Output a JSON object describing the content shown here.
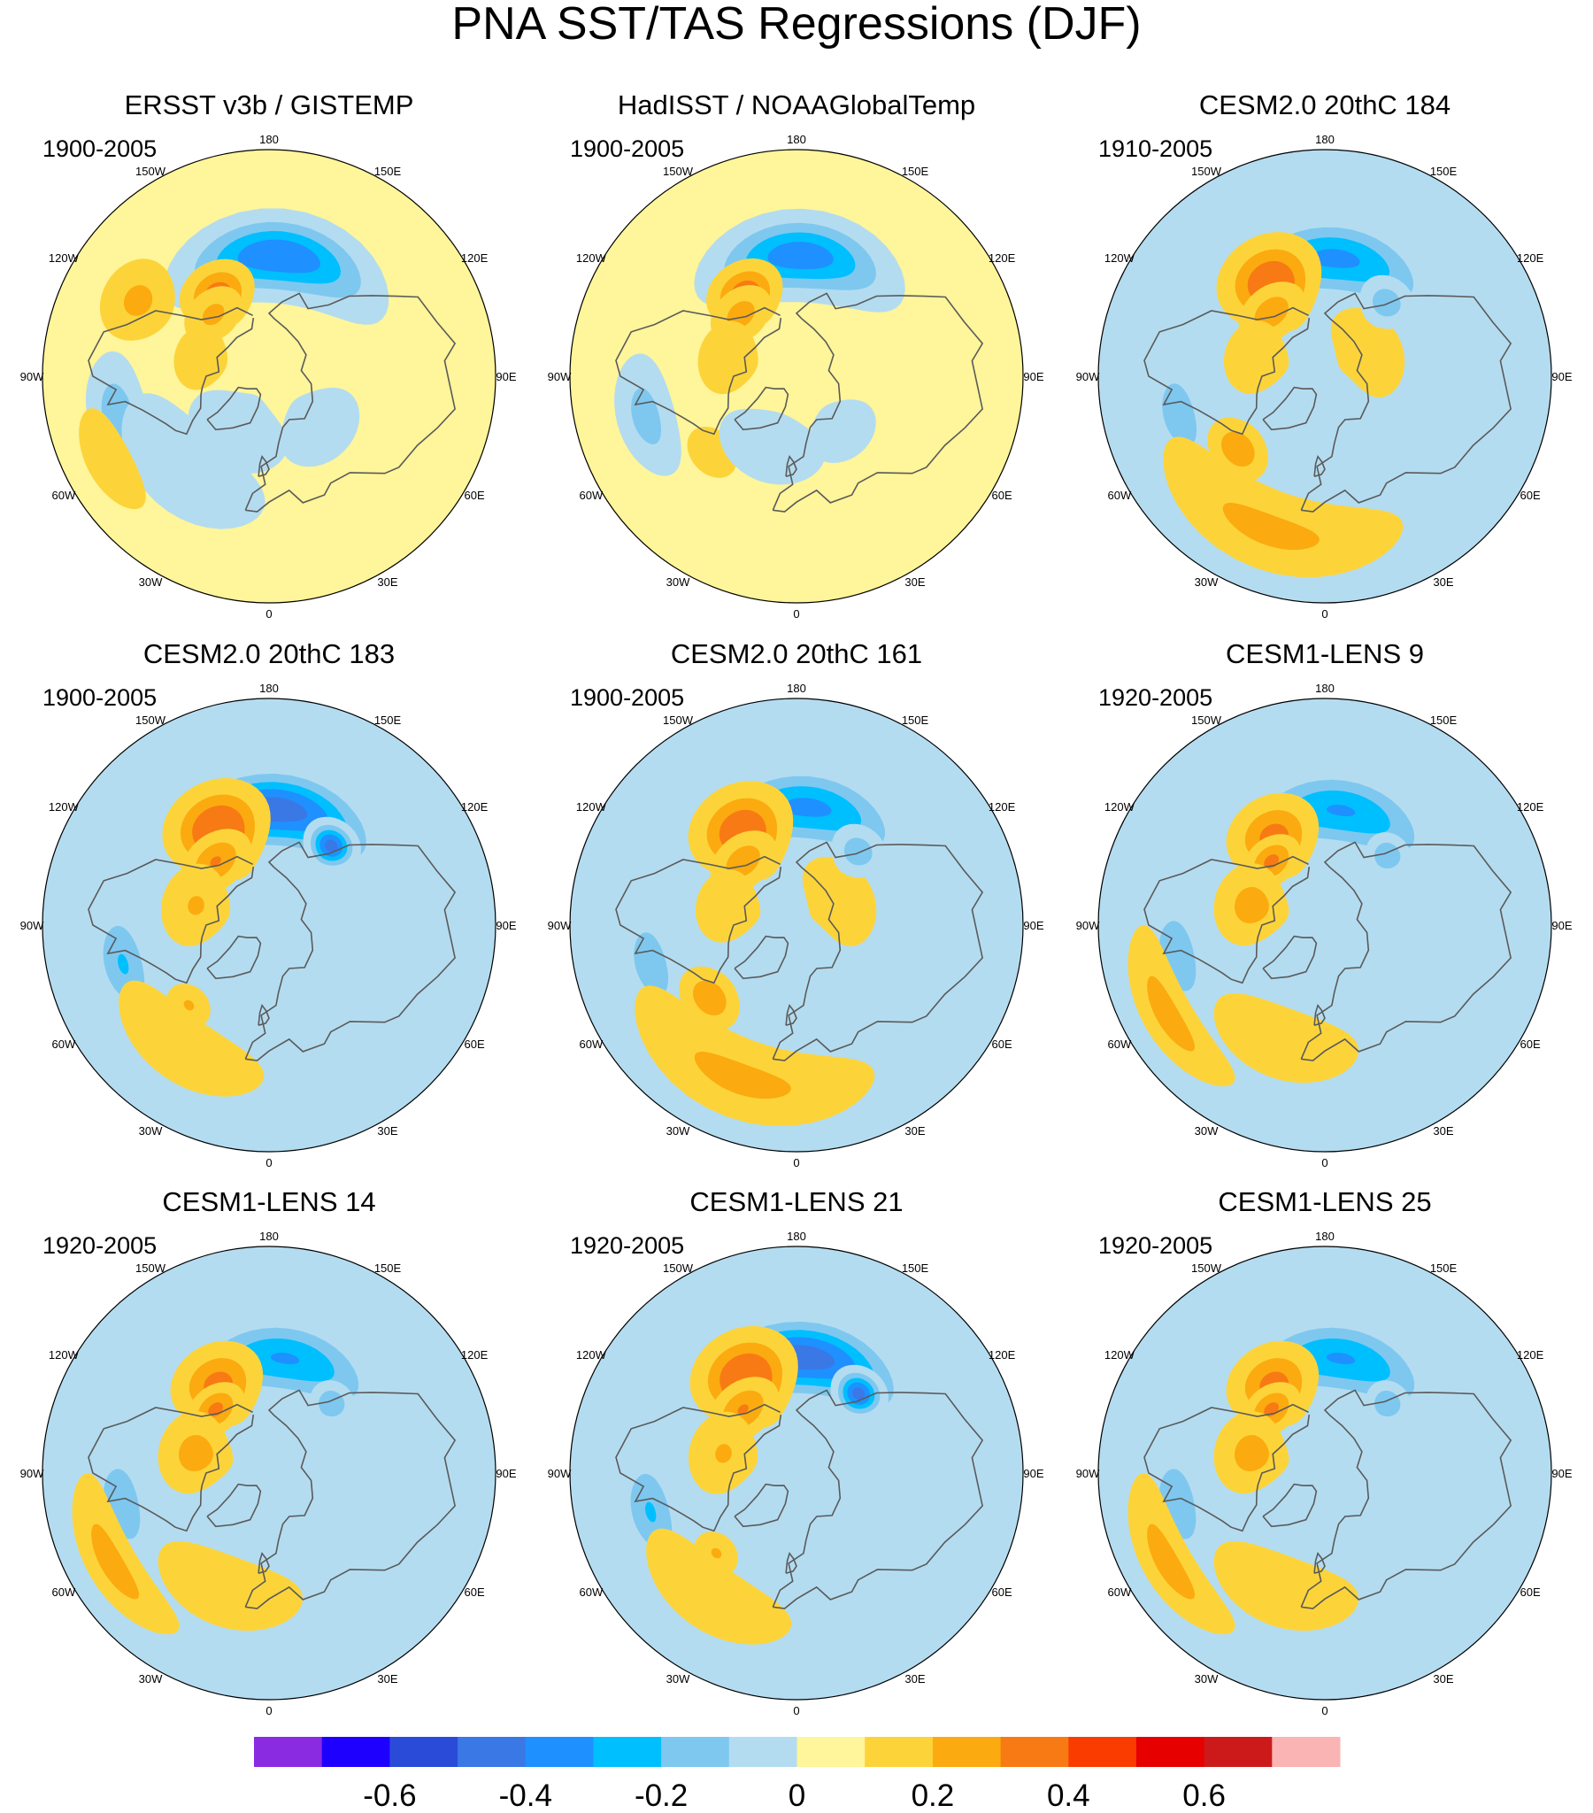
{
  "figure": {
    "title": "PNA SST/TAS Regressions (DJF)",
    "season": "DJF",
    "projection": "north-polar-stereographic"
  },
  "lon_labels": [
    "180",
    "150E",
    "120E",
    "90E",
    "60E",
    "30E",
    "0",
    "30W",
    "60W",
    "90W",
    "120W",
    "150W"
  ],
  "panels": [
    {
      "title": "ERSST v3b / GISTEMP",
      "period": "1900-2005",
      "preset": "obs_ersst"
    },
    {
      "title": "HadISST / NOAAGlobalTemp",
      "period": "1900-2005",
      "preset": "obs_hadisst"
    },
    {
      "title": "CESM2.0 20thC 184",
      "period": "1910-2005",
      "preset": "model_a"
    },
    {
      "title": "CESM2.0 20thC 183",
      "period": "1900-2005",
      "preset": "model_b"
    },
    {
      "title": "CESM2.0 20thC 161",
      "period": "1900-2005",
      "preset": "model_a"
    },
    {
      "title": "CESM1-LENS 9",
      "period": "1920-2005",
      "preset": "model_c"
    },
    {
      "title": "CESM1-LENS 14",
      "period": "1920-2005",
      "preset": "model_c"
    },
    {
      "title": "CESM1-LENS 21",
      "period": "1920-2005",
      "preset": "model_b"
    },
    {
      "title": "CESM1-LENS 25",
      "period": "1920-2005",
      "preset": "model_c"
    }
  ],
  "colorbar": {
    "colors": [
      "#8a2be2",
      "#1e00ff",
      "#2a4bd7",
      "#3a78e6",
      "#1e90ff",
      "#00bfff",
      "#7ec8f0",
      "#b4dcf0",
      "#fff59a",
      "#fcd43a",
      "#fbab0f",
      "#f87a14",
      "#fb3c00",
      "#e60000",
      "#cc1a1a",
      "#fbb4b4"
    ],
    "tick_labels": [
      "-0.6",
      "-0.4",
      "-0.2",
      "0",
      "0.2",
      "0.4",
      "0.6"
    ],
    "tick_boundary_index": [
      2,
      4,
      6,
      8,
      10,
      12,
      14
    ]
  },
  "chart_data": {
    "type": "heatmap",
    "title": "PNA SST/TAS Regressions (DJF)",
    "variable": "SST/TAS regression onto PNA index",
    "levels": [
      -0.7,
      -0.6,
      -0.5,
      -0.4,
      -0.3,
      -0.2,
      -0.1,
      0,
      0.1,
      0.2,
      0.3,
      0.4,
      0.5,
      0.6,
      0.7
    ],
    "panels": [
      "ERSST v3b / GISTEMP",
      "HadISST / NOAAGlobalTemp",
      "CESM2.0 20thC 184",
      "CESM2.0 20thC 183",
      "CESM2.0 20thC 161",
      "CESM1-LENS 9",
      "CESM1-LENS 14",
      "CESM1-LENS 21",
      "CESM1-LENS 25"
    ],
    "presets": {
      "obs_ersst": {
        "background": 0.04,
        "features": [
          {
            "lon": 175,
            "lat": 42,
            "amp": -0.45,
            "slon": 28,
            "slat": 9
          },
          {
            "lon": -148,
            "lat": 52,
            "amp": 0.32,
            "slon": 12,
            "slat": 7
          },
          {
            "lon": -138,
            "lat": 57,
            "amp": 0.18,
            "slon": 14,
            "slat": 6
          },
          {
            "lon": -120,
            "lat": 30,
            "amp": 0.18,
            "slon": 10,
            "slat": 9
          },
          {
            "lon": -105,
            "lat": 62,
            "amp": 0.1,
            "slon": 22,
            "slat": 9
          },
          {
            "lon": -75,
            "lat": 28,
            "amp": -0.22,
            "slon": 14,
            "slat": 7
          },
          {
            "lon": -42,
            "lat": 40,
            "amp": -0.14,
            "slon": 28,
            "slat": 12
          },
          {
            "lon": -30,
            "lat": 65,
            "amp": -0.12,
            "slon": 35,
            "slat": 12
          },
          {
            "lon": 45,
            "lat": 62,
            "amp": -0.1,
            "slon": 30,
            "slat": 12
          },
          {
            "lon": -62,
            "lat": 18,
            "amp": 0.15,
            "slon": 12,
            "slat": 6
          }
        ]
      },
      "obs_hadisst": {
        "background": 0.04,
        "features": [
          {
            "lon": 178,
            "lat": 42,
            "amp": -0.42,
            "slon": 26,
            "slat": 9
          },
          {
            "lon": -148,
            "lat": 52,
            "amp": 0.34,
            "slon": 12,
            "slat": 7
          },
          {
            "lon": -138,
            "lat": 57,
            "amp": 0.2,
            "slon": 14,
            "slat": 6
          },
          {
            "lon": -105,
            "lat": 62,
            "amp": 0.12,
            "slon": 22,
            "slat": 9
          },
          {
            "lon": -75,
            "lat": 28,
            "amp": -0.2,
            "slon": 14,
            "slat": 7
          },
          {
            "lon": -48,
            "lat": 45,
            "amp": 0.14,
            "slon": 10,
            "slat": 6
          },
          {
            "lon": -20,
            "lat": 60,
            "amp": -0.1,
            "slon": 35,
            "slat": 12
          },
          {
            "lon": 40,
            "lat": 62,
            "amp": -0.08,
            "slon": 30,
            "slat": 12
          }
        ]
      },
      "model_a": {
        "background": -0.02,
        "features": [
          {
            "lon": 175,
            "lat": 43,
            "amp": -0.38,
            "slon": 30,
            "slat": 9
          },
          {
            "lon": -150,
            "lat": 48,
            "amp": 0.38,
            "slon": 14,
            "slat": 10
          },
          {
            "lon": -140,
            "lat": 57,
            "amp": 0.22,
            "slon": 15,
            "slat": 6
          },
          {
            "lon": -105,
            "lat": 62,
            "amp": 0.14,
            "slon": 20,
            "slat": 9
          },
          {
            "lon": -75,
            "lat": 30,
            "amp": -0.22,
            "slon": 14,
            "slat": 7
          },
          {
            "lon": -50,
            "lat": 45,
            "amp": 0.24,
            "slon": 10,
            "slat": 6
          },
          {
            "lon": -20,
            "lat": 25,
            "amp": 0.18,
            "slon": 30,
            "slat": 10
          },
          {
            "lon": 120,
            "lat": 70,
            "amp": 0.12,
            "slon": 40,
            "slat": 10
          },
          {
            "lon": 140,
            "lat": 52,
            "amp": -0.22,
            "slon": 10,
            "slat": 6
          }
        ]
      },
      "model_b": {
        "background": -0.02,
        "features": [
          {
            "lon": 178,
            "lat": 44,
            "amp": -0.52,
            "slon": 32,
            "slat": 9
          },
          {
            "lon": 142,
            "lat": 50,
            "amp": -0.5,
            "slon": 8,
            "slat": 5
          },
          {
            "lon": -152,
            "lat": 48,
            "amp": 0.42,
            "slon": 14,
            "slat": 10
          },
          {
            "lon": -140,
            "lat": 57,
            "amp": 0.26,
            "slon": 15,
            "slat": 6
          },
          {
            "lon": -105,
            "lat": 60,
            "amp": 0.16,
            "slon": 20,
            "slat": 9
          },
          {
            "lon": -75,
            "lat": 30,
            "amp": -0.26,
            "slon": 14,
            "slat": 7
          },
          {
            "lon": -45,
            "lat": 45,
            "amp": 0.16,
            "slon": 8,
            "slat": 5
          },
          {
            "lon": -35,
            "lat": 30,
            "amp": 0.12,
            "slon": 25,
            "slat": 10
          }
        ]
      },
      "model_c": {
        "background": -0.03,
        "features": [
          {
            "lon": 172,
            "lat": 44,
            "amp": -0.36,
            "slon": 30,
            "slat": 9
          },
          {
            "lon": -150,
            "lat": 50,
            "amp": 0.3,
            "slon": 14,
            "slat": 9
          },
          {
            "lon": -140,
            "lat": 57,
            "amp": 0.28,
            "slon": 12,
            "slat": 5
          },
          {
            "lon": -105,
            "lat": 60,
            "amp": 0.2,
            "slon": 18,
            "slat": 9
          },
          {
            "lon": -78,
            "lat": 30,
            "amp": -0.24,
            "slon": 14,
            "slat": 7
          },
          {
            "lon": -60,
            "lat": 18,
            "amp": 0.2,
            "slon": 18,
            "slat": 6
          },
          {
            "lon": -20,
            "lat": 40,
            "amp": 0.1,
            "slon": 30,
            "slat": 12
          },
          {
            "lon": 138,
            "lat": 53,
            "amp": -0.25,
            "slon": 8,
            "slat": 5
          }
        ]
      }
    }
  }
}
